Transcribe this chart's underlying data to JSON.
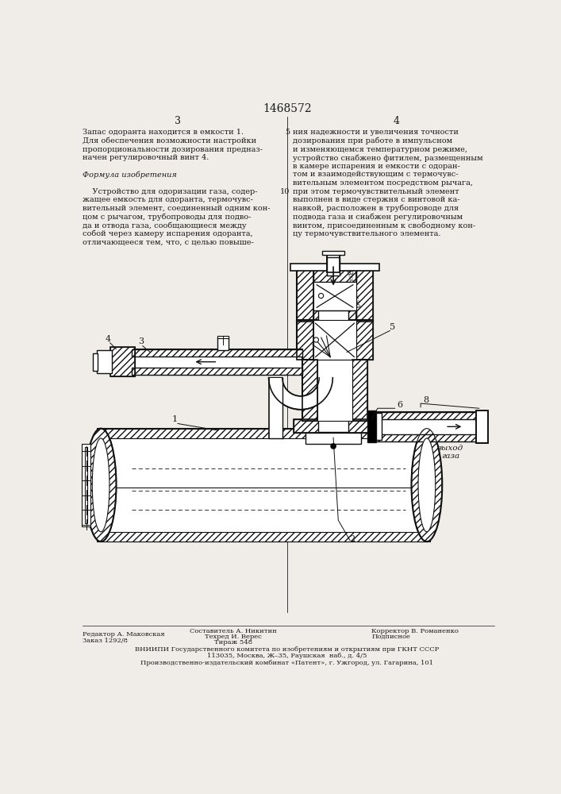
{
  "title": "1468572",
  "page_col1_num": "3",
  "page_col2_num": "4",
  "col1_lines": [
    "Запас одоранта находится в емкости 1.",
    "Для обеспечения возможности настройки",
    "пропорциональности дозирования предназ-",
    "начен регулировочный винт 4.",
    "",
    "Формула изобретения",
    "",
    "    Устройство для одоризации газа, содер-",
    "жащее емкость для одоранта, термочувс-",
    "вительный элемент, соединенный одним кон-",
    "цом с рычагом, трубопроводы для подво-",
    "да и отвода газа, сообщающиеся между",
    "собой через камеру испарения одоранта,",
    "отличающееся тем, что, с целью повыше-"
  ],
  "col2_lines": [
    "ния надежности и увеличения точности",
    "дозирования при работе в импульсном",
    "и изменяющемся температурном режиме,",
    "устройство снабжено фитилем, размещенным",
    "в камере испарения и емкости с одоран-",
    "том и взаимодействующим с термочувс-",
    "вительным элементом посредством рычага,",
    "при этом термочувствительный элемент",
    "выполнен в виде стержня с винтовой ка-",
    "навкой, расположен в трубопроводе для",
    "подвода газа и снабжен регулировочным",
    "винтом, присоединенным к свободному кон-",
    "цу термочувствительного элемента."
  ],
  "line_nums": {
    "0": "5",
    "7": "10"
  },
  "footer_left1": "Редактор А. Маковская",
  "footer_left2": "Заказ 1292/8",
  "footer_center1": "Составитель А. Никитин",
  "footer_center2": "Техред И. Верес",
  "footer_center3": "Тираж 548",
  "footer_right1": "Корректор В. Романенко",
  "footer_right2": "Подписное",
  "footer_line1": "ВНИИПИ Государственного комитета по изобретениям и открытиям при ГКНТ СССР",
  "footer_line2": "113035, Москва, Ж–35, Раушская  наб., д. 4/5",
  "footer_line3": "Производственно-издательский комбинат «Патент», г. Ужгород, ул. Гагарина, 101",
  "bg_color": "#f0ede8",
  "text_color": "#1a1a1a",
  "draw_color": "#111111"
}
